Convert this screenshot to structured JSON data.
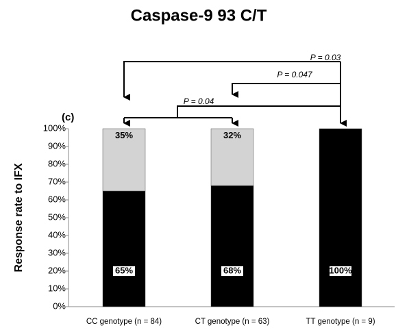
{
  "chart_data": {
    "type": "stacked_bar",
    "title": "Caspase-9 93 C/T",
    "panel_label": "(c)",
    "y_label": "Response rate to IFX",
    "categories": [
      "CC genotype (n = 84)",
      "CT genotype (n = 63)",
      "TT genotype (n = 9)"
    ],
    "series": [
      {
        "color": "#000000",
        "values": [
          65,
          68,
          100
        ],
        "value_labels": [
          "65%",
          "68%",
          "100%"
        ]
      },
      {
        "color": "#d3d3d3",
        "values": [
          35,
          32,
          0
        ],
        "value_labels": [
          "35%",
          "32%",
          null
        ]
      }
    ],
    "ylim": [
      0,
      100
    ],
    "yticks": [
      {
        "value": 0,
        "label": "0%"
      },
      {
        "value": 10,
        "label": "10%"
      },
      {
        "value": 20,
        "label": "20%"
      },
      {
        "value": 30,
        "label": "30%"
      },
      {
        "value": 40,
        "label": "40%"
      },
      {
        "value": 50,
        "label": "50%"
      },
      {
        "value": 60,
        "label": "60%"
      },
      {
        "value": 70,
        "label": "70%"
      },
      {
        "value": 80,
        "label": "80%"
      },
      {
        "value": 90,
        "label": "90%"
      },
      {
        "value": 100,
        "label": "100%"
      }
    ],
    "annotations": [
      "P = 0.03",
      "P = 0.047",
      "P = 0.04"
    ]
  }
}
